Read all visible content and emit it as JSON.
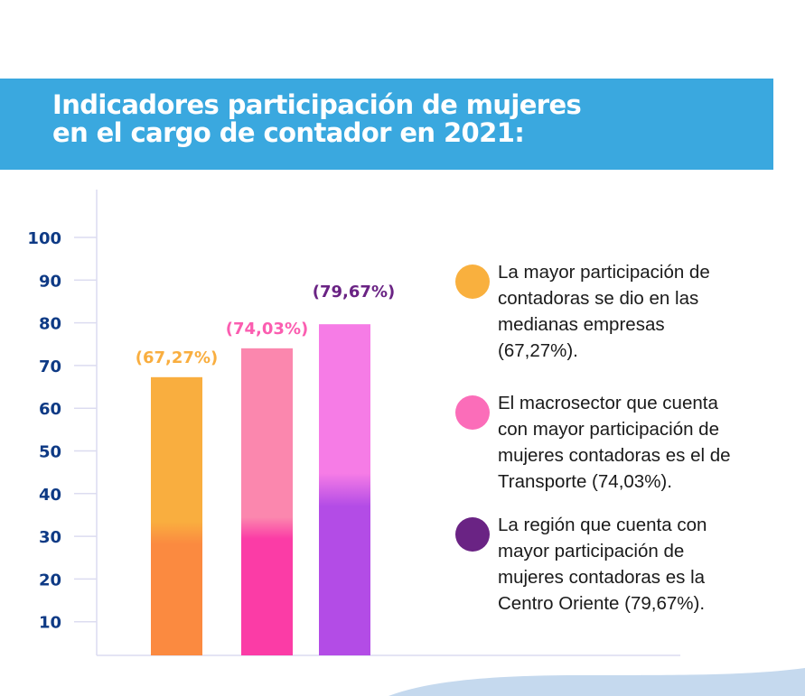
{
  "header": {
    "title_lines": [
      "Indicadores participación de mujeres",
      "en el cargo de contador en 2021:"
    ],
    "background": "#3aa8df"
  },
  "chart_data": {
    "type": "bar",
    "title": "Indicadores participación de mujeres en el cargo de contador en 2021:",
    "xlabel": "",
    "ylabel": "",
    "categories": [
      "Medianas empresas",
      "Transporte",
      "Centro Oriente"
    ],
    "values": [
      67.27,
      74.03,
      79.67
    ],
    "data_labels": [
      "(67,27%)",
      "(74,03%)",
      "(79,67%)"
    ],
    "label_colors": [
      "#f9ae3f",
      "#fb5db0",
      "#6a2384"
    ],
    "bar_gradients": [
      [
        "#f9ae3f",
        "#fb8a40"
      ],
      [
        "#fb87ae",
        "#fb3ca6"
      ],
      [
        "#f67ce6",
        "#b34ce6"
      ]
    ],
    "yticks": [
      10,
      20,
      30,
      40,
      50,
      60,
      70,
      80,
      90,
      100
    ],
    "ylim": [
      0,
      100
    ],
    "grid": false,
    "legend": "right"
  },
  "legend": [
    {
      "color": "#f9b03e",
      "lines": [
        "La mayor participación de",
        "contadoras se dio en las",
        "medianas empresas",
        "(67,27%)."
      ]
    },
    {
      "color": "#fb6db9",
      "lines": [
        "El macrosector que cuenta",
        "con mayor participación de",
        "mujeres contadoras es el de",
        "Transporte (74,03%)."
      ]
    },
    {
      "color": "#6a2384",
      "lines": [
        "La región que cuenta con",
        "mayor participación de",
        "mujeres contadoras es la",
        "Centro Oriente (79,67%)."
      ]
    }
  ]
}
